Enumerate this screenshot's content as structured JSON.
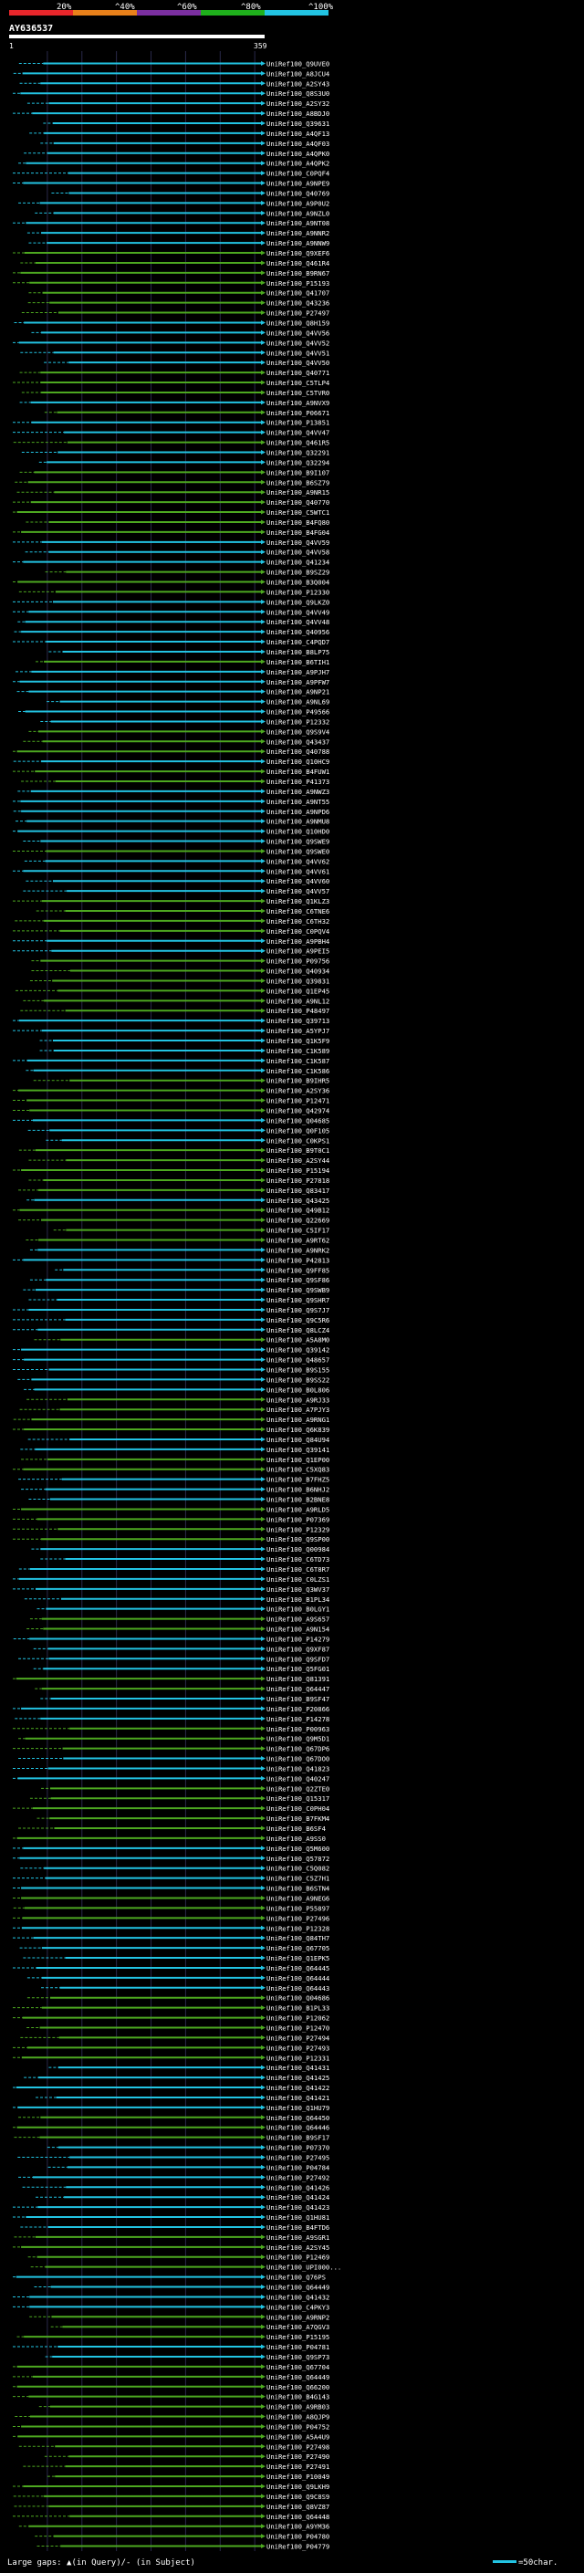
{
  "chart_data": {
    "type": "alignment-overview",
    "title": "AY636537",
    "scale_labels": [
      "20%",
      "^40%",
      "^60%",
      "^80%",
      "^100%"
    ],
    "scale_colors": [
      "#e8262b",
      "#e8801a",
      "#7b2fa0",
      "#1fb01c",
      "#22c3e2"
    ],
    "query_start": "1",
    "query_end": "359",
    "query_length": 359,
    "footer_text": "Large gaps: ▲(in Query)/- (in Subject)",
    "scale_bar_text": "=50char.",
    "colors": {
      "background": "#000000",
      "high_identity": "#22c3e2",
      "mid_identity": "#4da820",
      "gridline": "#2a2a4a"
    },
    "hits": [
      {
        "id": "UniRef100_Q9UVE0",
        "identity": 100
      },
      {
        "id": "UniRef100_A8JCU4",
        "identity": 100
      },
      {
        "id": "UniRef100_A2SY43",
        "identity": 100
      },
      {
        "id": "UniRef100_Q8S3U0",
        "identity": 100
      },
      {
        "id": "UniRef100_A2SY32",
        "identity": 100
      },
      {
        "id": "UniRef100_A8BDJ0",
        "identity": 100
      },
      {
        "id": "UniRef100_Q39631",
        "identity": 100
      },
      {
        "id": "UniRef100_A4QF13",
        "identity": 100
      },
      {
        "id": "UniRef100_A4QF03",
        "identity": 100
      },
      {
        "id": "UniRef100_A4QPK0",
        "identity": 100
      },
      {
        "id": "UniRef100_A4QPK2",
        "identity": 100
      },
      {
        "id": "UniRef100_C0PQF4",
        "identity": 100
      },
      {
        "id": "UniRef100_A9NPE9",
        "identity": 100
      },
      {
        "id": "UniRef100_Q40769",
        "identity": 100
      },
      {
        "id": "UniRef100_A9P0U2",
        "identity": 100
      },
      {
        "id": "UniRef100_A9NZL0",
        "identity": 100
      },
      {
        "id": "UniRef100_A9NT08",
        "identity": 100
      },
      {
        "id": "UniRef100_A9NNR2",
        "identity": 100
      },
      {
        "id": "UniRef100_A9NNW9",
        "identity": 100
      },
      {
        "id": "UniRef100_Q9XEF6",
        "identity": 80
      },
      {
        "id": "UniRef100_Q461R4",
        "identity": 80
      },
      {
        "id": "UniRef100_B9RN67",
        "identity": 80
      },
      {
        "id": "UniRef100_P15193",
        "identity": 80
      },
      {
        "id": "UniRef100_Q41707",
        "identity": 80
      },
      {
        "id": "UniRef100_Q43236",
        "identity": 80
      },
      {
        "id": "UniRef100_P27497",
        "identity": 80
      },
      {
        "id": "UniRef100_Q8H159",
        "identity": 100
      },
      {
        "id": "UniRef100_Q4VV56",
        "identity": 100
      },
      {
        "id": "UniRef100_Q4VV52",
        "identity": 100
      },
      {
        "id": "UniRef100_Q4VV51",
        "identity": 100
      },
      {
        "id": "UniRef100_Q4VV50",
        "identity": 100
      },
      {
        "id": "UniRef100_Q40771",
        "identity": 80
      },
      {
        "id": "UniRef100_C5TLP4",
        "identity": 80
      },
      {
        "id": "UniRef100_C5TVR0",
        "identity": 80
      },
      {
        "id": "UniRef100_A9NVX9",
        "identity": 100
      },
      {
        "id": "UniRef100_P06671",
        "identity": 80
      },
      {
        "id": "UniRef100_P13851",
        "identity": 100
      },
      {
        "id": "UniRef100_Q4VV47",
        "identity": 100
      },
      {
        "id": "UniRef100_Q461R5",
        "identity": 80
      },
      {
        "id": "UniRef100_Q32291",
        "identity": 100
      },
      {
        "id": "UniRef100_Q32294",
        "identity": 100
      },
      {
        "id": "UniRef100_B9I107",
        "identity": 80
      },
      {
        "id": "UniRef100_B6SZ79",
        "identity": 80
      },
      {
        "id": "UniRef100_A9NR15",
        "identity": 80
      },
      {
        "id": "UniRef100_Q40770",
        "identity": 80
      },
      {
        "id": "UniRef100_C5WTC1",
        "identity": 80
      },
      {
        "id": "UniRef100_B4FQ80",
        "identity": 80
      },
      {
        "id": "UniRef100_B4FG04",
        "identity": 80
      },
      {
        "id": "UniRef100_Q4VV59",
        "identity": 100
      },
      {
        "id": "UniRef100_Q4VV58",
        "identity": 100
      },
      {
        "id": "UniRef100_Q41234",
        "identity": 100
      },
      {
        "id": "UniRef100_B9SZ29",
        "identity": 80
      },
      {
        "id": "UniRef100_B3Q004",
        "identity": 80
      },
      {
        "id": "UniRef100_P12330",
        "identity": 80
      },
      {
        "id": "UniRef100_Q9LKZ0",
        "identity": 100
      },
      {
        "id": "UniRef100_Q4VV49",
        "identity": 100
      },
      {
        "id": "UniRef100_Q4VV48",
        "identity": 100
      },
      {
        "id": "UniRef100_Q40956",
        "identity": 100
      },
      {
        "id": "UniRef100_C4PQD7",
        "identity": 100
      },
      {
        "id": "UniRef100_B8LP75",
        "identity": 100
      },
      {
        "id": "UniRef100_B6TIH1",
        "identity": 80
      },
      {
        "id": "UniRef100_A9PJH7",
        "identity": 100
      },
      {
        "id": "UniRef100_A9PFW7",
        "identity": 100
      },
      {
        "id": "UniRef100_A9NP21",
        "identity": 100
      },
      {
        "id": "UniRef100_A9NL69",
        "identity": 100
      },
      {
        "id": "UniRef100_P49566",
        "identity": 100
      },
      {
        "id": "UniRef100_P12332",
        "identity": 100
      },
      {
        "id": "UniRef100_Q9S9V4",
        "identity": 80
      },
      {
        "id": "UniRef100_Q43437",
        "identity": 80
      },
      {
        "id": "UniRef100_Q40788",
        "identity": 80
      },
      {
        "id": "UniRef100_Q10HC9",
        "identity": 100
      },
      {
        "id": "UniRef100_B4FUW1",
        "identity": 80
      },
      {
        "id": "UniRef100_P41373",
        "identity": 80
      },
      {
        "id": "UniRef100_A9NWZ3",
        "identity": 100
      },
      {
        "id": "UniRef100_A9NT55",
        "identity": 100
      },
      {
        "id": "UniRef100_A9NPD6",
        "identity": 100
      },
      {
        "id": "UniRef100_A9NMU8",
        "identity": 100
      },
      {
        "id": "UniRef100_Q10HD0",
        "identity": 100
      },
      {
        "id": "UniRef100_Q9SWE9",
        "identity": 100
      },
      {
        "id": "UniRef100_Q9SWE0",
        "identity": 80
      },
      {
        "id": "UniRef100_Q4VV62",
        "identity": 100
      },
      {
        "id": "UniRef100_Q4VV61",
        "identity": 100
      },
      {
        "id": "UniRef100_Q4VV60",
        "identity": 100
      },
      {
        "id": "UniRef100_Q4VV57",
        "identity": 100
      },
      {
        "id": "UniRef100_Q1KLZ3",
        "identity": 80
      },
      {
        "id": "UniRef100_C6TNE6",
        "identity": 80
      },
      {
        "id": "UniRef100_C6TH32",
        "identity": 80
      },
      {
        "id": "UniRef100_C0PQV4",
        "identity": 80
      },
      {
        "id": "UniRef100_A9PBH4",
        "identity": 100
      },
      {
        "id": "UniRef100_A9PEI5",
        "identity": 100
      },
      {
        "id": "UniRef100_P09756",
        "identity": 80
      },
      {
        "id": "UniRef100_Q40934",
        "identity": 80
      },
      {
        "id": "UniRef100_Q39831",
        "identity": 80
      },
      {
        "id": "UniRef100_Q1EP45",
        "identity": 80
      },
      {
        "id": "UniRef100_A9NL12",
        "identity": 80
      },
      {
        "id": "UniRef100_P48497",
        "identity": 80
      },
      {
        "id": "UniRef100_Q39713",
        "identity": 100
      },
      {
        "id": "UniRef100_A5YPJ7",
        "identity": 100
      },
      {
        "id": "UniRef100_Q1K5F9",
        "identity": 100
      },
      {
        "id": "UniRef100_C1K589",
        "identity": 100
      },
      {
        "id": "UniRef100_C1K587",
        "identity": 100
      },
      {
        "id": "UniRef100_C1K586",
        "identity": 100
      },
      {
        "id": "UniRef100_B9IHR5",
        "identity": 80
      },
      {
        "id": "UniRef100_A2SY36",
        "identity": 80
      },
      {
        "id": "UniRef100_P12471",
        "identity": 80
      },
      {
        "id": "UniRef100_Q42974",
        "identity": 80
      },
      {
        "id": "UniRef100_Q04685",
        "identity": 100
      },
      {
        "id": "UniRef100_Q0F105",
        "identity": 100
      },
      {
        "id": "UniRef100_C0KPS1",
        "identity": 100
      },
      {
        "id": "UniRef100_B9T0C1",
        "identity": 80
      },
      {
        "id": "UniRef100_A2SY44",
        "identity": 80
      },
      {
        "id": "UniRef100_P15194",
        "identity": 80
      },
      {
        "id": "UniRef100_P27818",
        "identity": 80
      },
      {
        "id": "UniRef100_Q83417",
        "identity": 80
      },
      {
        "id": "UniRef100_Q43425",
        "identity": 100
      },
      {
        "id": "UniRef100_Q49B12",
        "identity": 80
      },
      {
        "id": "UniRef100_Q22669",
        "identity": 80
      },
      {
        "id": "UniRef100_C5IF17",
        "identity": 80
      },
      {
        "id": "UniRef100_A9RT62",
        "identity": 80
      },
      {
        "id": "UniRef100_A9NRK2",
        "identity": 100
      },
      {
        "id": "UniRef100_P42813",
        "identity": 100
      },
      {
        "id": "UniRef100_Q9FF85",
        "identity": 100
      },
      {
        "id": "UniRef100_Q9SF86",
        "identity": 100
      },
      {
        "id": "UniRef100_Q9SWB9",
        "identity": 100
      },
      {
        "id": "UniRef100_Q9SHR7",
        "identity": 100
      },
      {
        "id": "UniRef100_Q9S7J7",
        "identity": 100
      },
      {
        "id": "UniRef100_Q9C5R6",
        "identity": 100
      },
      {
        "id": "UniRef100_Q8LCZ4",
        "identity": 100
      },
      {
        "id": "UniRef100_A5A8M0",
        "identity": 80
      },
      {
        "id": "UniRef100_Q39142",
        "identity": 100
      },
      {
        "id": "UniRef100_Q48657",
        "identity": 100
      },
      {
        "id": "UniRef100_B9S155",
        "identity": 100
      },
      {
        "id": "UniRef100_B9SS22",
        "identity": 100
      },
      {
        "id": "UniRef100_B0L806",
        "identity": 100
      },
      {
        "id": "UniRef100_A9RJ33",
        "identity": 80
      },
      {
        "id": "UniRef100_A7PJY3",
        "identity": 80
      },
      {
        "id": "UniRef100_A9RNG1",
        "identity": 80
      },
      {
        "id": "UniRef100_Q6K839",
        "identity": 80
      },
      {
        "id": "UniRef100_Q84U94",
        "identity": 100
      },
      {
        "id": "UniRef100_Q39141",
        "identity": 100
      },
      {
        "id": "UniRef100_Q1EP00",
        "identity": 80
      },
      {
        "id": "UniRef100_C5XQ83",
        "identity": 80
      },
      {
        "id": "UniRef100_B7FHZ5",
        "identity": 100
      },
      {
        "id": "UniRef100_B6NHJ2",
        "identity": 100
      },
      {
        "id": "UniRef100_B2BNE8",
        "identity": 100
      },
      {
        "id": "UniRef100_A9RLD5",
        "identity": 80
      },
      {
        "id": "UniRef100_P07369",
        "identity": 80
      },
      {
        "id": "UniRef100_P12329",
        "identity": 80
      },
      {
        "id": "UniRef100_Q9SP00",
        "identity": 80
      },
      {
        "id": "UniRef100_Q00984",
        "identity": 100
      },
      {
        "id": "UniRef100_C6TD73",
        "identity": 100
      },
      {
        "id": "UniRef100_C6T8R7",
        "identity": 100
      },
      {
        "id": "UniRef100_C0LZS1",
        "identity": 100
      },
      {
        "id": "UniRef100_Q3WV37",
        "identity": 100
      },
      {
        "id": "UniRef100_B1PL34",
        "identity": 100
      },
      {
        "id": "UniRef100_B0LGY1",
        "identity": 100
      },
      {
        "id": "UniRef100_A9S657",
        "identity": 80
      },
      {
        "id": "UniRef100_A9N154",
        "identity": 80
      },
      {
        "id": "UniRef100_P14279",
        "identity": 100
      },
      {
        "id": "UniRef100_Q9XF87",
        "identity": 100
      },
      {
        "id": "UniRef100_Q9SFD7",
        "identity": 100
      },
      {
        "id": "UniRef100_Q5FG01",
        "identity": 100
      },
      {
        "id": "UniRef100_Q81391",
        "identity": 80
      },
      {
        "id": "UniRef100_Q64447",
        "identity": 80
      },
      {
        "id": "UniRef100_B9SF47",
        "identity": 100
      },
      {
        "id": "UniRef100_P20866",
        "identity": 100
      },
      {
        "id": "UniRef100_P14278",
        "identity": 100
      },
      {
        "id": "UniRef100_P00963",
        "identity": 80
      },
      {
        "id": "UniRef100_Q9M5D1",
        "identity": 80
      },
      {
        "id": "UniRef100_Q67DP6",
        "identity": 80
      },
      {
        "id": "UniRef100_Q67DO0",
        "identity": 100
      },
      {
        "id": "UniRef100_Q41823",
        "identity": 100
      },
      {
        "id": "UniRef100_Q40247",
        "identity": 100
      },
      {
        "id": "UniRef100_Q2ZTE0",
        "identity": 80
      },
      {
        "id": "UniRef100_Q15317",
        "identity": 80
      },
      {
        "id": "UniRef100_C0PH04",
        "identity": 80
      },
      {
        "id": "UniRef100_B7FKM4",
        "identity": 80
      },
      {
        "id": "UniRef100_B6SF4",
        "identity": 80
      },
      {
        "id": "UniRef100_A9SS0",
        "identity": 80
      },
      {
        "id": "UniRef100_Q5M600",
        "identity": 100
      },
      {
        "id": "UniRef100_Q57872",
        "identity": 100
      },
      {
        "id": "UniRef100_C5Q082",
        "identity": 100
      },
      {
        "id": "UniRef100_C5Z7H1",
        "identity": 100
      },
      {
        "id": "UniRef100_B6STN4",
        "identity": 100
      },
      {
        "id": "UniRef100_A9NEG6",
        "identity": 80
      },
      {
        "id": "UniRef100_P55897",
        "identity": 80
      },
      {
        "id": "UniRef100_P27496",
        "identity": 80
      },
      {
        "id": "UniRef100_P12328",
        "identity": 100
      },
      {
        "id": "UniRef100_Q84TH7",
        "identity": 100
      },
      {
        "id": "UniRef100_Q67705",
        "identity": 100
      },
      {
        "id": "UniRef100_Q1EPK5",
        "identity": 100
      },
      {
        "id": "UniRef100_Q64445",
        "identity": 100
      },
      {
        "id": "UniRef100_Q64444",
        "identity": 100
      },
      {
        "id": "UniRef100_Q64443",
        "identity": 100
      },
      {
        "id": "UniRef100_Q04686",
        "identity": 80
      },
      {
        "id": "UniRef100_B1PL33",
        "identity": 80
      },
      {
        "id": "UniRef100_P12062",
        "identity": 80
      },
      {
        "id": "UniRef100_P12470",
        "identity": 80
      },
      {
        "id": "UniRef100_P27494",
        "identity": 80
      },
      {
        "id": "UniRef100_P27493",
        "identity": 80
      },
      {
        "id": "UniRef100_P12331",
        "identity": 80
      },
      {
        "id": "UniRef100_Q41431",
        "identity": 100
      },
      {
        "id": "UniRef100_Q41425",
        "identity": 100
      },
      {
        "id": "UniRef100_Q41422",
        "identity": 100
      },
      {
        "id": "UniRef100_Q41421",
        "identity": 100
      },
      {
        "id": "UniRef100_Q1HU79",
        "identity": 100
      },
      {
        "id": "UniRef100_Q64450",
        "identity": 80
      },
      {
        "id": "UniRef100_Q64446",
        "identity": 80
      },
      {
        "id": "UniRef100_B9SF17",
        "identity": 80
      },
      {
        "id": "UniRef100_P07370",
        "identity": 100
      },
      {
        "id": "UniRef100_P27495",
        "identity": 100
      },
      {
        "id": "UniRef100_P04784",
        "identity": 100
      },
      {
        "id": "UniRef100_P27492",
        "identity": 100
      },
      {
        "id": "UniRef100_Q41426",
        "identity": 100
      },
      {
        "id": "UniRef100_Q41424",
        "identity": 100
      },
      {
        "id": "UniRef100_Q41423",
        "identity": 100
      },
      {
        "id": "UniRef100_Q1HU81",
        "identity": 100
      },
      {
        "id": "UniRef100_B4FTD6",
        "identity": 100
      },
      {
        "id": "UniRef100_A9SGR1",
        "identity": 80
      },
      {
        "id": "UniRef100_A2SY45",
        "identity": 80
      },
      {
        "id": "UniRef100_P12469",
        "identity": 80
      },
      {
        "id": "UniRef100_UPI000...",
        "identity": 80
      },
      {
        "id": "UniRef100_Q76PS",
        "identity": 100
      },
      {
        "id": "UniRef100_Q64449",
        "identity": 100
      },
      {
        "id": "UniRef100_Q41432",
        "identity": 100
      },
      {
        "id": "UniRef100_C4PKY3",
        "identity": 100
      },
      {
        "id": "UniRef100_A9RNP2",
        "identity": 80
      },
      {
        "id": "UniRef100_A7QGV3",
        "identity": 80
      },
      {
        "id": "UniRef100_P15195",
        "identity": 80
      },
      {
        "id": "UniRef100_P04781",
        "identity": 100
      },
      {
        "id": "UniRef100_Q9SP73",
        "identity": 100
      },
      {
        "id": "UniRef100_Q67704",
        "identity": 80
      },
      {
        "id": "UniRef100_Q64449",
        "identity": 80
      },
      {
        "id": "UniRef100_Q66200",
        "identity": 80
      },
      {
        "id": "UniRef100_B4G143",
        "identity": 80
      },
      {
        "id": "UniRef100_A9RB03",
        "identity": 80
      },
      {
        "id": "UniRef100_A8QJP9",
        "identity": 80
      },
      {
        "id": "UniRef100_P04752",
        "identity": 80
      },
      {
        "id": "UniRef100_A5A4U9",
        "identity": 80
      },
      {
        "id": "UniRef100_P27498",
        "identity": 80
      },
      {
        "id": "UniRef100_P27490",
        "identity": 80
      },
      {
        "id": "UniRef100_P27491",
        "identity": 80
      },
      {
        "id": "UniRef100_P10049",
        "identity": 80
      },
      {
        "id": "UniRef100_Q9LKH9",
        "identity": 80
      },
      {
        "id": "UniRef100_Q9C8S9",
        "identity": 80
      },
      {
        "id": "UniRef100_Q8VZ87",
        "identity": 80
      },
      {
        "id": "UniRef100_Q64448",
        "identity": 80
      },
      {
        "id": "UniRef100_A9YM36",
        "identity": 80
      },
      {
        "id": "UniRef100_P04780",
        "identity": 80
      },
      {
        "id": "UniRef100_P04779",
        "identity": 80
      }
    ]
  }
}
